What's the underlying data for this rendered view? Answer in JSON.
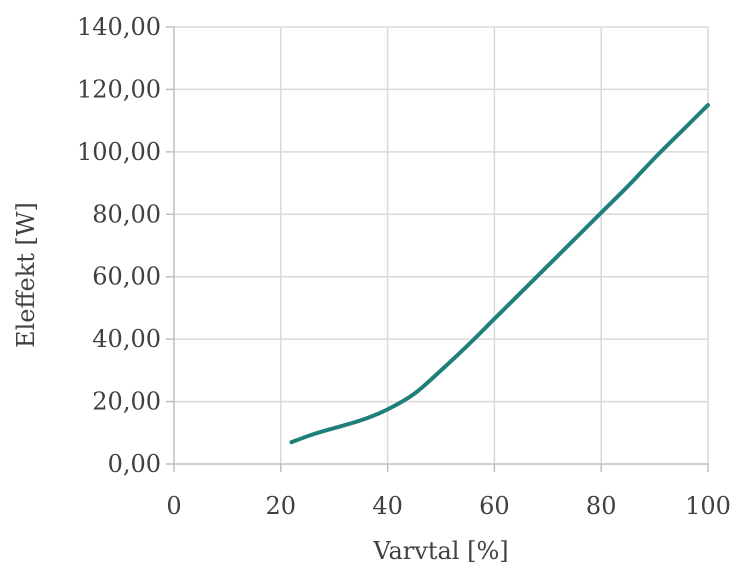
{
  "chart_data": {
    "type": "scatter",
    "title": "",
    "xlabel": "Varvtal [%]",
    "ylabel": "Eleffekt [W]",
    "xlim": [
      0,
      100
    ],
    "ylim": [
      0,
      140
    ],
    "x_ticks": [
      0,
      20,
      40,
      60,
      80,
      100
    ],
    "x_tick_labels": [
      "0",
      "20",
      "40",
      "60",
      "80",
      "100"
    ],
    "y_ticks": [
      0,
      20,
      40,
      60,
      80,
      100,
      120,
      140
    ],
    "y_tick_labels": [
      "0,00",
      "20,00",
      "40,00",
      "60,00",
      "80,00",
      "100,00",
      "120,00",
      "140,00"
    ],
    "grid": true,
    "legend": "none",
    "series": [
      {
        "color": "#1f7f7a",
        "line": "smooth",
        "x": [
          22,
          26,
          30,
          35,
          40,
          45,
          50,
          55,
          60,
          65,
          70,
          75,
          80,
          85,
          90,
          95,
          100
        ],
        "y": [
          7,
          9.5,
          11.5,
          14,
          17.5,
          22.5,
          30,
          38,
          46.5,
          55,
          63.5,
          72,
          80.5,
          89,
          98,
          106.5,
          115
        ]
      }
    ]
  }
}
